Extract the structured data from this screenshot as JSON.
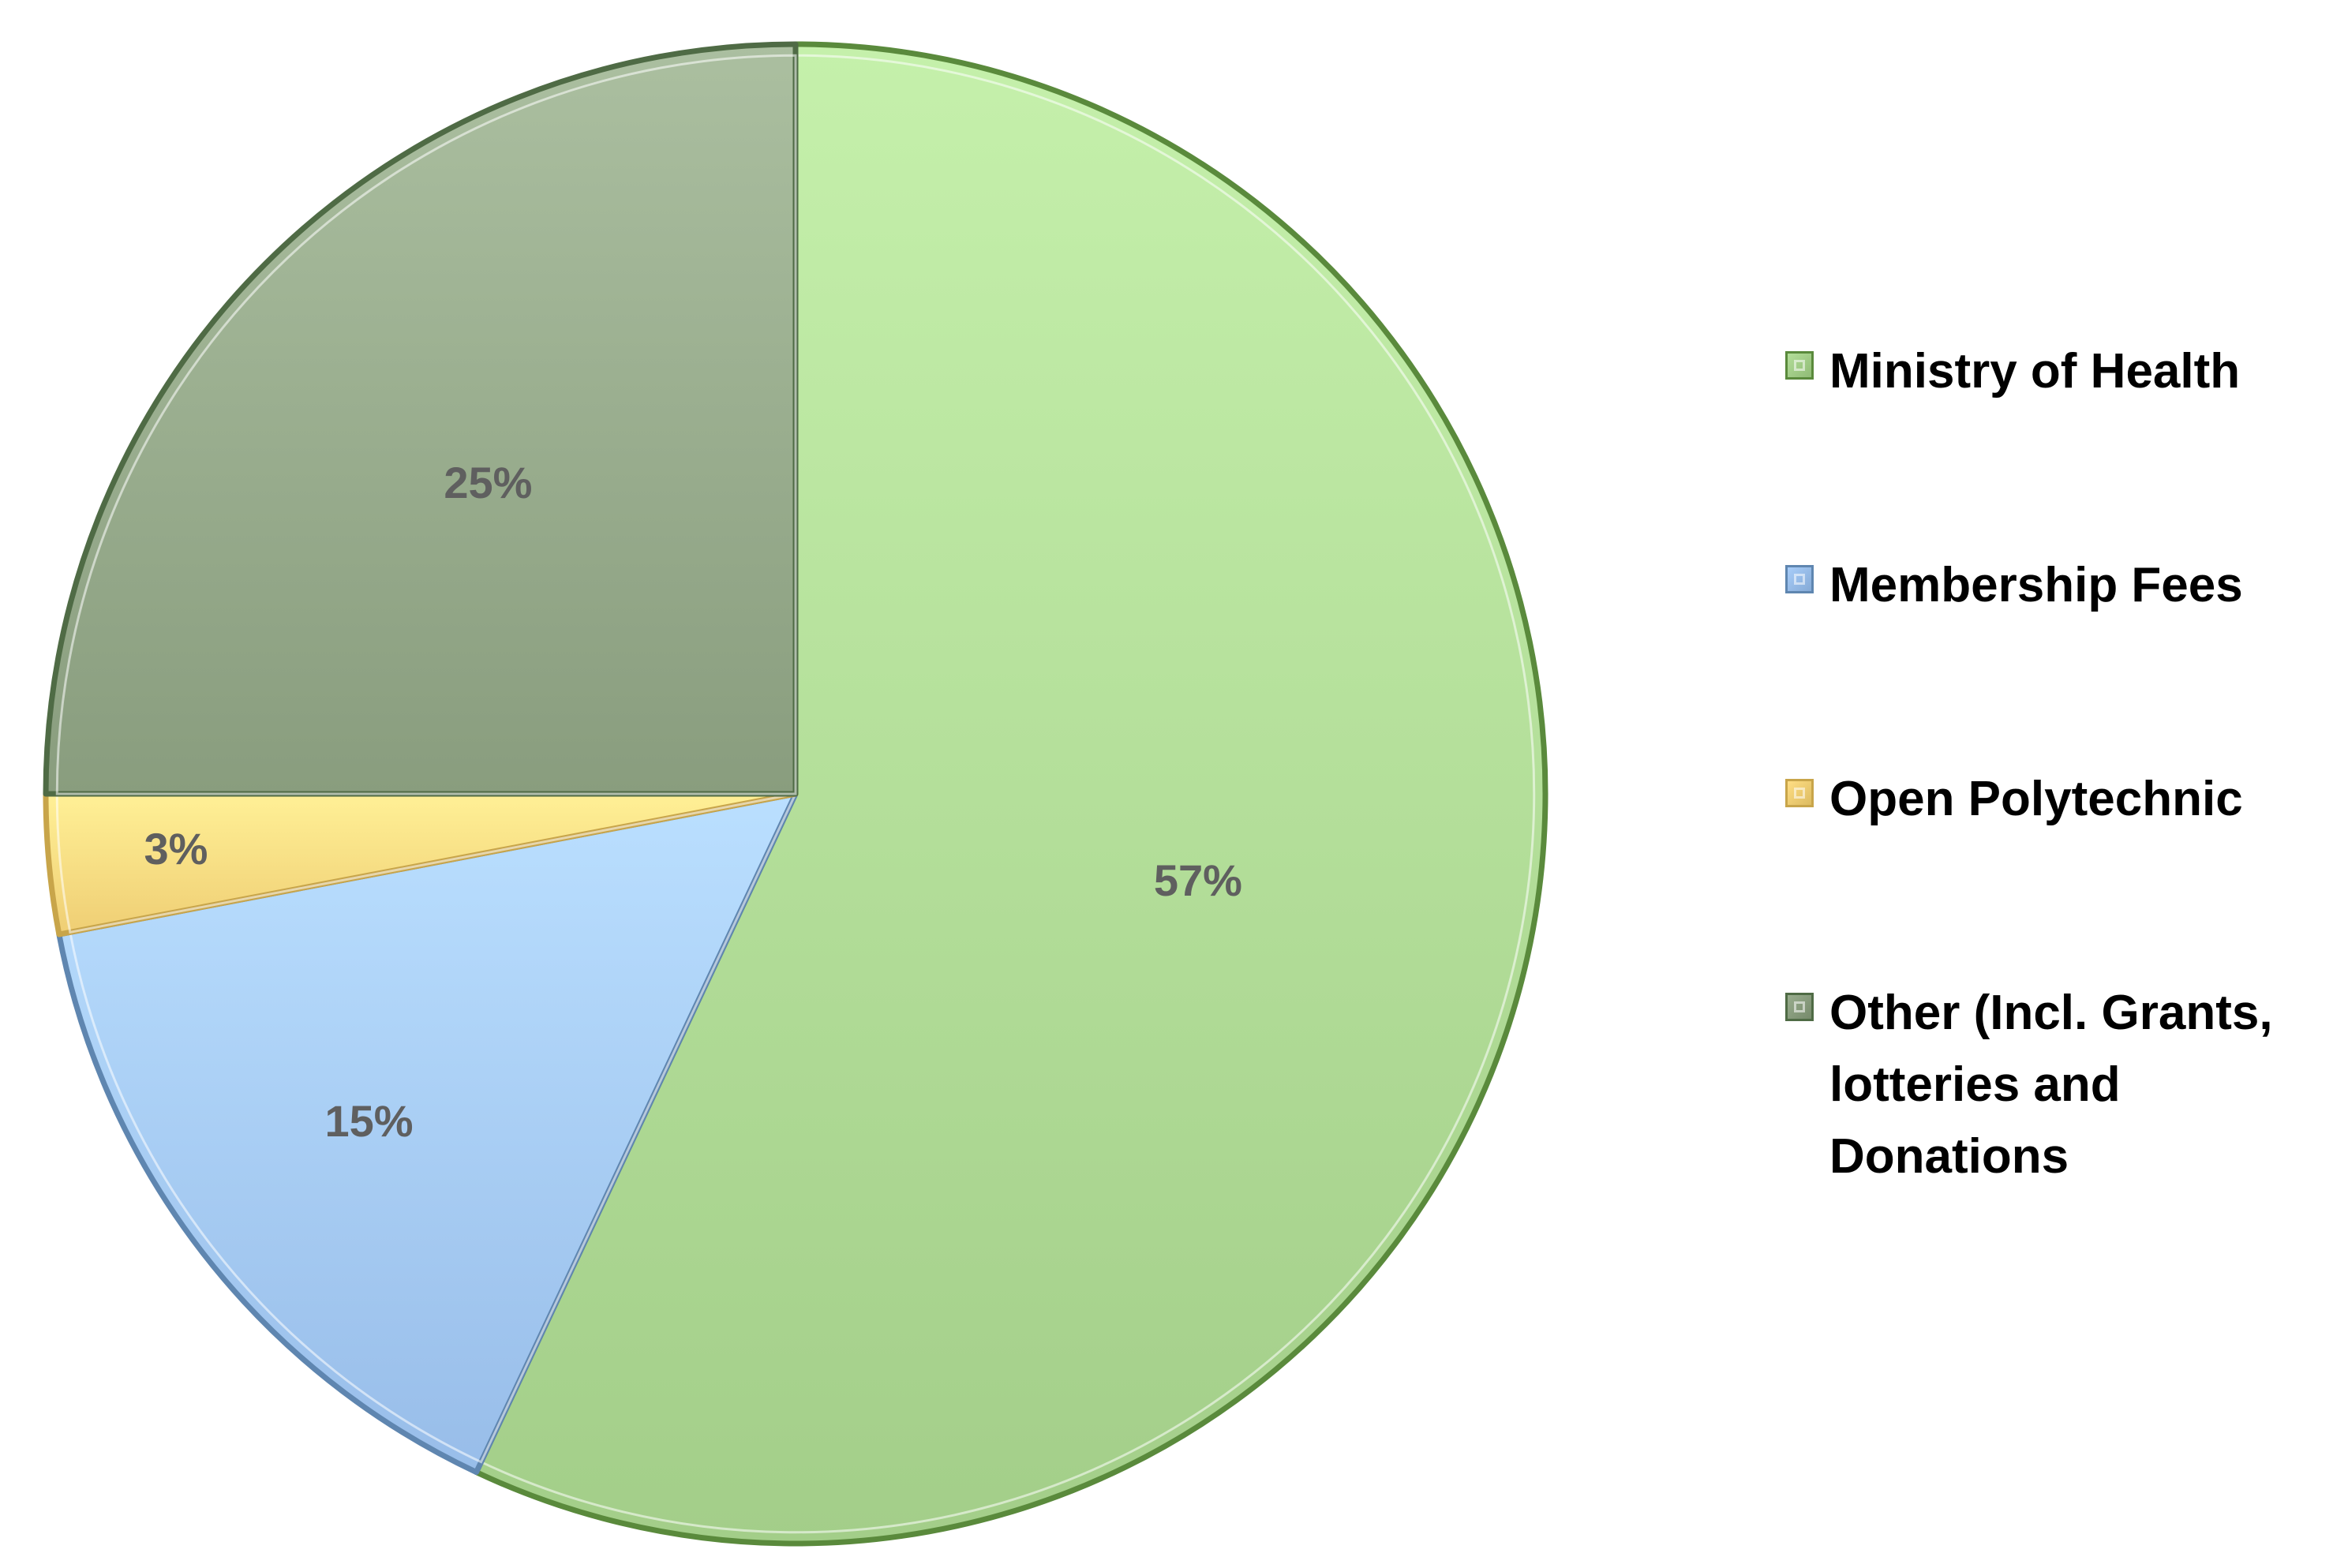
{
  "chart_data": {
    "type": "pie",
    "categories": [
      "Ministry of Health",
      "Membership Fees",
      "Open Polytechnic",
      "Other (Incl. Grants,\nlotteries and\nDonations"
    ],
    "values": [
      57,
      15,
      3,
      25
    ],
    "data_labels": [
      "57%",
      "15%",
      "3%",
      "25%"
    ],
    "colors": [
      "#a9d48f",
      "#9ec3ef",
      "#f5d47a",
      "#8fa384"
    ],
    "border_colors": [
      "#5a8a3c",
      "#5f86b0",
      "#c8a54a",
      "#4f6b45"
    ],
    "start_angle_deg": 0,
    "direction": "clockwise",
    "legend_position": "right",
    "title": ""
  }
}
